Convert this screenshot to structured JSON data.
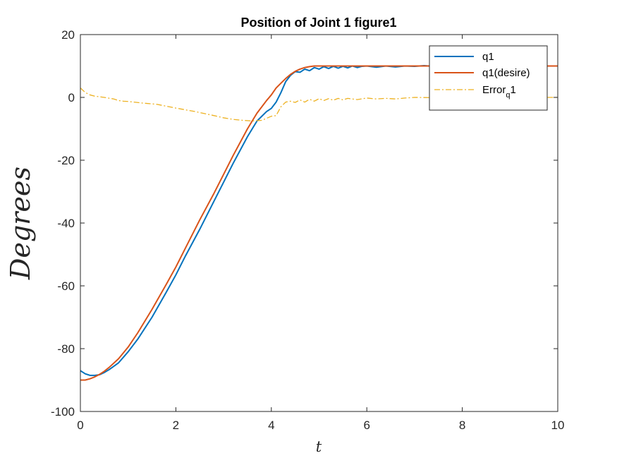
{
  "chart_data": {
    "type": "line",
    "title": "Position of Joint 1 figure1",
    "xlabel": "t",
    "ylabel": "Degrees",
    "xlim": [
      0,
      10
    ],
    "ylim": [
      -100,
      20
    ],
    "xticks": [
      0,
      2,
      4,
      6,
      8,
      10
    ],
    "yticks": [
      -100,
      -80,
      -60,
      -40,
      -20,
      0,
      20
    ],
    "grid": false,
    "legend_position": "top-right",
    "legend": [
      {
        "label": "q1",
        "sub": "",
        "tail": ""
      },
      {
        "label": "q1(desire)",
        "sub": "",
        "tail": ""
      },
      {
        "label": "Error",
        "sub": "q",
        "tail": "1"
      }
    ],
    "series": [
      {
        "name": "q1",
        "color": "#0072BD",
        "style": "solid",
        "x": [
          0,
          0.1,
          0.2,
          0.3,
          0.4,
          0.5,
          0.6,
          0.8,
          1.0,
          1.2,
          1.5,
          1.8,
          2.0,
          2.2,
          2.5,
          2.8,
          3.0,
          3.2,
          3.5,
          3.7,
          3.9,
          4.0,
          4.1,
          4.2,
          4.3,
          4.4,
          4.5,
          4.6,
          4.7,
          4.8,
          4.9,
          5.0,
          5.1,
          5.2,
          5.3,
          5.4,
          5.5,
          5.6,
          5.7,
          5.8,
          5.9,
          6.0,
          6.2,
          6.4,
          6.6,
          6.8,
          7.0,
          7.2,
          7.4,
          7.6,
          8.0,
          8.5,
          9.0,
          9.5,
          10.0
        ],
        "y": [
          -87,
          -88,
          -88.5,
          -88.5,
          -88.3,
          -87.6,
          -86.7,
          -84.5,
          -81,
          -77,
          -70,
          -62,
          -56.5,
          -50.5,
          -42,
          -33,
          -27,
          -21,
          -12.5,
          -7.5,
          -4.5,
          -3.5,
          -1.5,
          1.5,
          5,
          7,
          8.2,
          8,
          9,
          8.5,
          9.5,
          9,
          9.8,
          9.2,
          9.9,
          9.3,
          9.9,
          9.4,
          10,
          9.5,
          9.9,
          10,
          9.6,
          10,
          9.7,
          10,
          9.9,
          10.1,
          9.9,
          10,
          10,
          10,
          10,
          10,
          10
        ]
      },
      {
        "name": "q1(desire)",
        "color": "#D95319",
        "style": "solid",
        "x": [
          0,
          0.1,
          0.2,
          0.3,
          0.4,
          0.5,
          0.6,
          0.8,
          1.0,
          1.2,
          1.5,
          1.8,
          2.0,
          2.2,
          2.5,
          2.8,
          3.0,
          3.2,
          3.5,
          3.7,
          3.9,
          4.0,
          4.1,
          4.2,
          4.3,
          4.4,
          4.5,
          4.6,
          4.7,
          4.8,
          4.9,
          5.0,
          6.0,
          7.0,
          8.0,
          9.0,
          10.0
        ],
        "y": [
          -90,
          -90,
          -89.6,
          -89,
          -88.2,
          -87.2,
          -86,
          -83.2,
          -79.5,
          -75,
          -67.5,
          -59.5,
          -54,
          -48,
          -39,
          -30.5,
          -24.5,
          -18.5,
          -10,
          -5,
          -1,
          0.8,
          3,
          4.5,
          6,
          7.3,
          8.3,
          9,
          9.5,
          9.8,
          10,
          10,
          10,
          10,
          10,
          10,
          10
        ]
      },
      {
        "name": "Error_q1",
        "color": "#EDB120",
        "style": "dashdot",
        "x": [
          0,
          0.1,
          0.2,
          0.3,
          0.5,
          0.7,
          0.8,
          0.9,
          1.0,
          1.3,
          1.6,
          2.0,
          2.4,
          2.8,
          3.0,
          3.2,
          3.4,
          3.6,
          3.8,
          4.0,
          4.1,
          4.2,
          4.3,
          4.4,
          4.5,
          4.6,
          4.7,
          4.8,
          4.9,
          5.0,
          5.1,
          5.2,
          5.3,
          5.4,
          5.5,
          5.6,
          5.8,
          6.0,
          6.2,
          6.4,
          6.6,
          6.8,
          7.0,
          7.5,
          8.0,
          9.0,
          10.0
        ],
        "y": [
          3,
          1.6,
          0.8,
          0.4,
          0,
          -0.5,
          -1,
          -1.2,
          -1.3,
          -1.8,
          -2.2,
          -3.4,
          -4.5,
          -5.8,
          -6.5,
          -7,
          -7.3,
          -7.5,
          -7.3,
          -6,
          -5.8,
          -3,
          -1.5,
          -1.2,
          -1.6,
          -0.8,
          -1.5,
          -0.6,
          -1.2,
          -0.4,
          -1,
          -0.4,
          -0.9,
          -0.3,
          -0.8,
          -0.3,
          -0.7,
          -0.2,
          -0.5,
          -0.3,
          -0.5,
          -0.2,
          0,
          -0.1,
          0,
          0,
          0
        ]
      }
    ]
  }
}
